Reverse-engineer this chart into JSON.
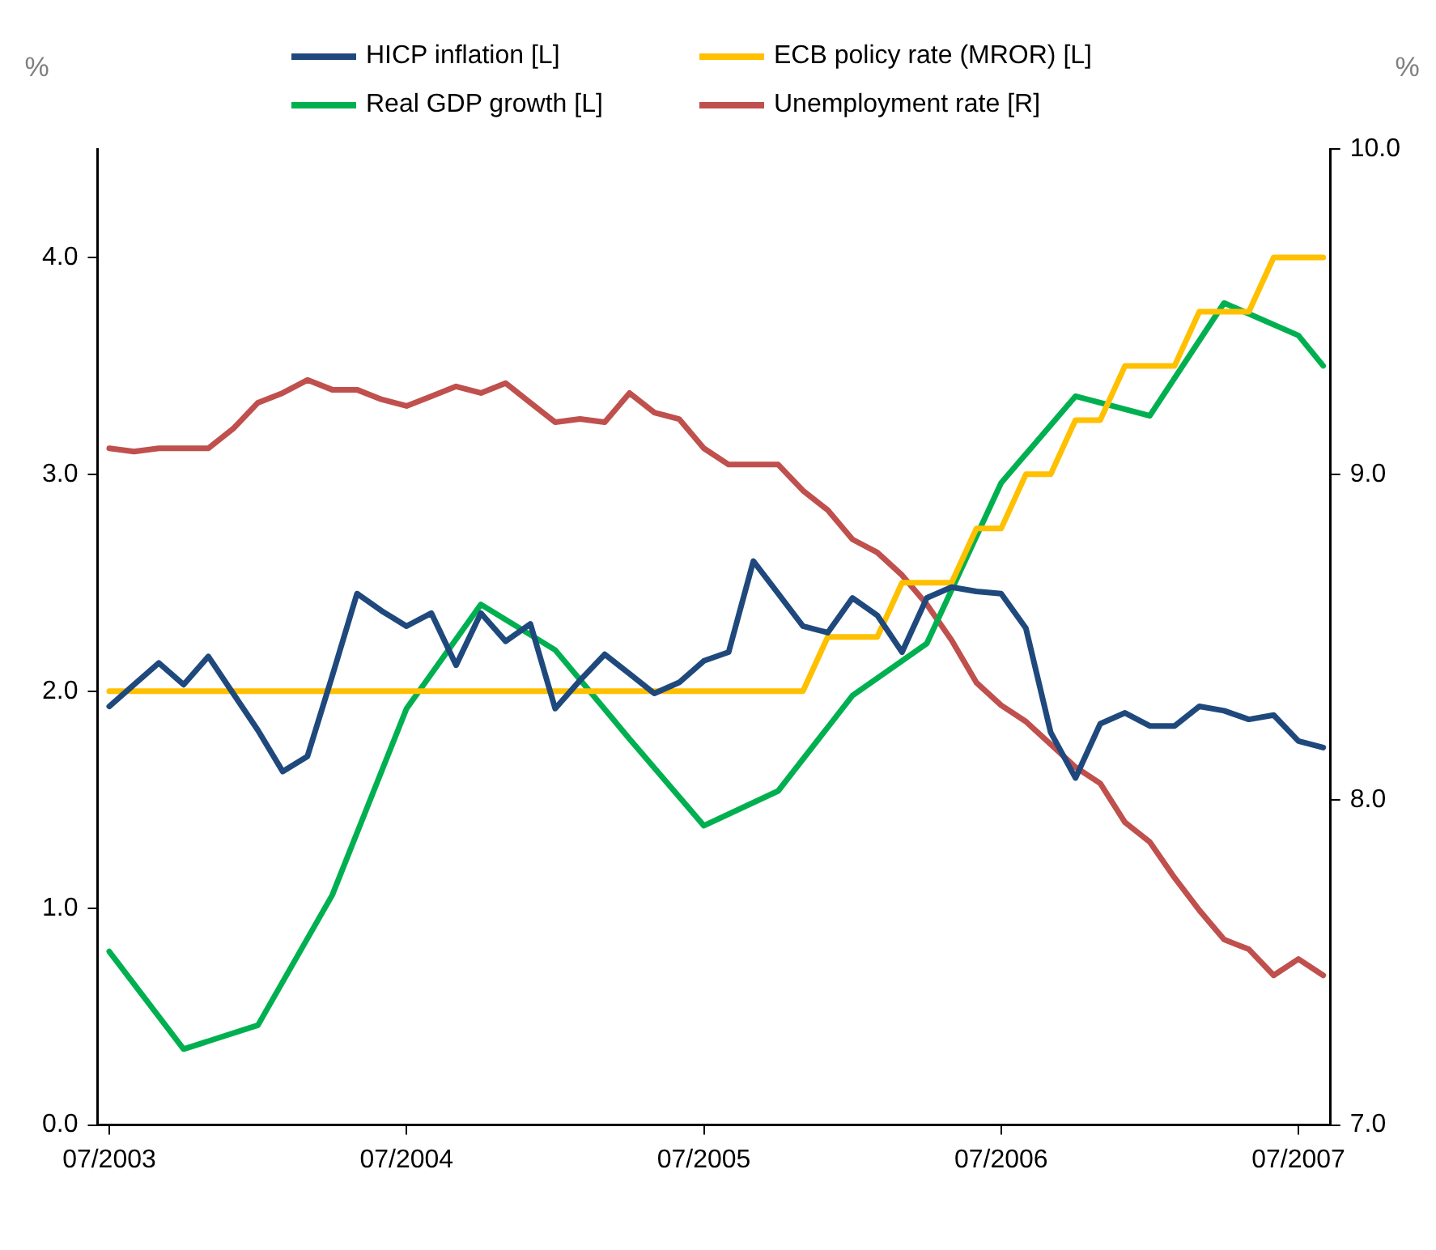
{
  "chart_data": {
    "type": "line",
    "ylabel": "%",
    "y2label": "%",
    "x": [
      "2003-07",
      "2003-08",
      "2003-09",
      "2003-10",
      "2003-11",
      "2003-12",
      "2004-01",
      "2004-02",
      "2004-03",
      "2004-04",
      "2004-05",
      "2004-06",
      "2004-07",
      "2004-08",
      "2004-09",
      "2004-10",
      "2004-11",
      "2004-12",
      "2005-01",
      "2005-02",
      "2005-03",
      "2005-04",
      "2005-05",
      "2005-06",
      "2005-07",
      "2005-08",
      "2005-09",
      "2005-10",
      "2005-11",
      "2005-12",
      "2006-01",
      "2006-02",
      "2006-03",
      "2006-04",
      "2006-05",
      "2006-06",
      "2006-07",
      "2006-08",
      "2006-09",
      "2006-10",
      "2006-11",
      "2006-12",
      "2007-01",
      "2007-02",
      "2007-03",
      "2007-04",
      "2007-05",
      "2007-06",
      "2007-07",
      "2007-08"
    ],
    "series": [
      {
        "name": "HICP inflation [L]",
        "color": "#1f497d",
        "values": [
          1.93,
          2.03,
          2.13,
          2.03,
          2.16,
          1.99,
          1.82,
          1.63,
          1.7,
          2.07,
          2.45,
          2.37,
          2.3,
          2.36,
          2.12,
          2.36,
          2.23,
          2.31,
          1.92,
          2.05,
          2.17,
          2.08,
          1.99,
          2.04,
          2.14,
          2.18,
          2.6,
          2.45,
          2.3,
          2.27,
          2.43,
          2.35,
          2.18,
          2.43,
          2.48,
          2.46,
          2.45,
          2.29,
          1.81,
          1.6,
          1.85,
          1.9,
          1.84,
          1.84,
          1.93,
          1.91,
          1.87,
          1.89,
          1.77,
          1.74
        ]
      },
      {
        "name": "ECB policy rate (MROR) [L]",
        "color": "#ffc000",
        "values": [
          2.0,
          2.0,
          2.0,
          2.0,
          2.0,
          2.0,
          2.0,
          2.0,
          2.0,
          2.0,
          2.0,
          2.0,
          2.0,
          2.0,
          2.0,
          2.0,
          2.0,
          2.0,
          2.0,
          2.0,
          2.0,
          2.0,
          2.0,
          2.0,
          2.0,
          2.0,
          2.0,
          2.0,
          2.0,
          2.25,
          2.25,
          2.25,
          2.5,
          2.5,
          2.5,
          2.75,
          2.75,
          3.0,
          3.0,
          3.25,
          3.25,
          3.5,
          3.5,
          3.5,
          3.75,
          3.75,
          3.75,
          4.0,
          4.0,
          4.0
        ]
      },
      {
        "name": "Real GDP growth [L]",
        "color": "#00b050",
        "x": [
          "2003-07",
          "2003-10",
          "2004-01",
          "2004-04",
          "2004-07",
          "2004-10",
          "2005-01",
          "2005-04",
          "2005-07",
          "2005-10",
          "2006-01",
          "2006-04",
          "2006-07",
          "2006-10",
          "2007-01",
          "2007-04",
          "2007-07",
          "2007-08"
        ],
        "values": [
          0.8,
          0.35,
          0.46,
          1.06,
          1.92,
          2.4,
          2.19,
          1.78,
          1.38,
          1.54,
          1.98,
          2.22,
          2.96,
          3.36,
          3.27,
          3.79,
          3.64,
          3.5
        ]
      },
      {
        "name": "Unemployment rate [R]",
        "color": "#c0504d",
        "axis": "y2",
        "values": [
          9.08,
          9.07,
          9.08,
          9.08,
          9.08,
          9.14,
          9.22,
          9.25,
          9.29,
          9.26,
          9.26,
          9.23,
          9.21,
          9.24,
          9.27,
          9.25,
          9.28,
          9.22,
          9.16,
          9.17,
          9.16,
          9.25,
          9.19,
          9.17,
          9.08,
          9.03,
          9.03,
          9.03,
          8.95,
          8.89,
          8.8,
          8.76,
          8.69,
          8.6,
          8.49,
          8.36,
          8.29,
          8.24,
          8.17,
          8.1,
          8.05,
          7.93,
          7.87,
          7.76,
          7.66,
          7.57,
          7.54,
          7.46,
          7.51,
          7.46
        ]
      }
    ],
    "xlim": [
      "2003-06-17",
      "2007-08-10"
    ],
    "xticks": [
      {
        "value": "2003-07",
        "label": "07/2003"
      },
      {
        "value": "2004-07",
        "label": "07/2004"
      },
      {
        "value": "2005-07",
        "label": "07/2005"
      },
      {
        "value": "2006-07",
        "label": "07/2006"
      },
      {
        "value": "2007-07",
        "label": "07/2007"
      }
    ],
    "ylim": [
      0,
      4.5
    ],
    "yticks": [
      {
        "value": 0,
        "label": "0.0"
      },
      {
        "value": 1,
        "label": "1.0"
      },
      {
        "value": 2,
        "label": "2.0"
      },
      {
        "value": 3,
        "label": "3.0"
      },
      {
        "value": 4,
        "label": "4.0"
      }
    ],
    "y2lim": [
      7,
      10
    ],
    "y2ticks": [
      {
        "value": 7,
        "label": "7.0"
      },
      {
        "value": 8,
        "label": "8.0"
      },
      {
        "value": 9,
        "label": "9.0"
      },
      {
        "value": 10,
        "label": "10.0"
      }
    ],
    "grid": false,
    "legend": "top",
    "marker": "none",
    "line_style": "solid"
  }
}
